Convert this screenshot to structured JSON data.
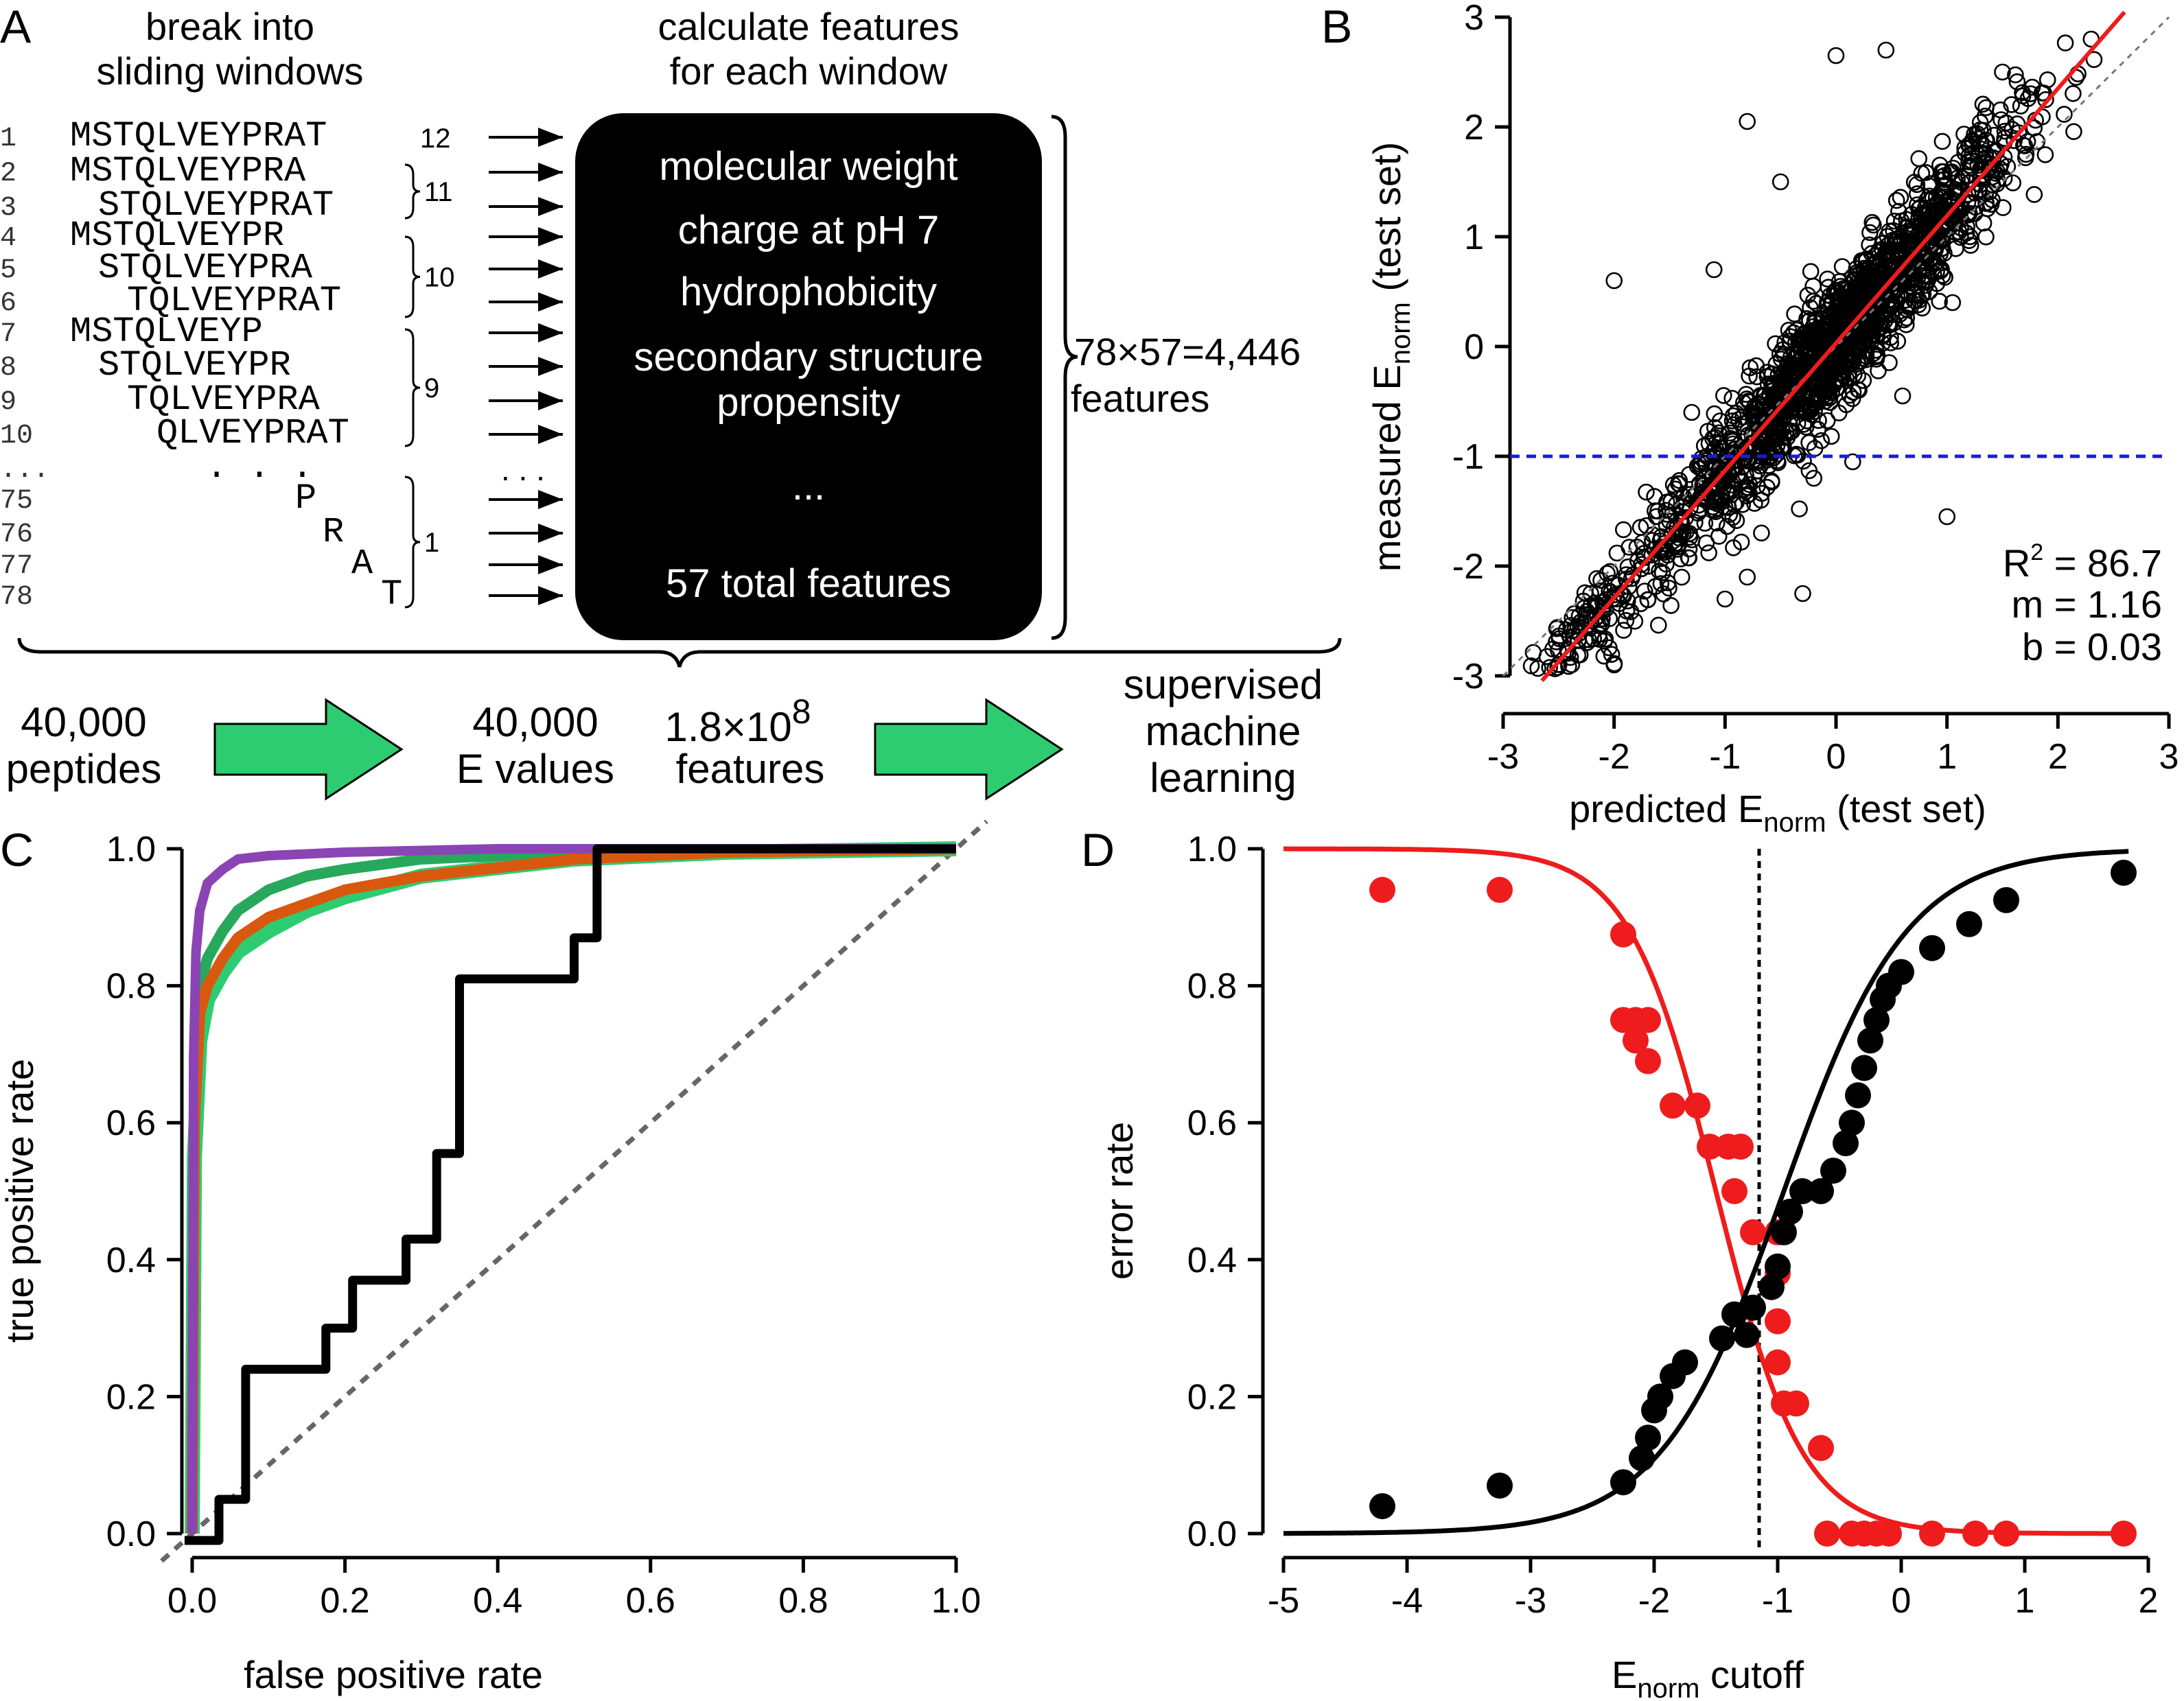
{
  "colors": {
    "red": "#ee1c1c",
    "blue": "#1a1adf",
    "green": "#2ecc71",
    "green_dark": "#27a85c",
    "orange": "#d9580f",
    "purple": "#8b44b4",
    "grey": "#666666",
    "black": "#000000"
  },
  "panel_a": {
    "letter": "A",
    "col1_header": [
      "break into",
      "sliding windows"
    ],
    "col2_header": [
      "calculate features",
      "for each window"
    ],
    "windows": [
      {
        "idx": "1",
        "seq": "MSTQLVEYPRAT"
      },
      {
        "idx": "2",
        "seq": "MSTQLVEYPRA"
      },
      {
        "idx": "3",
        "seq": "STQLVEYPRAT"
      },
      {
        "idx": "4",
        "seq": "MSTQLVEYPR"
      },
      {
        "idx": "5",
        "seq": "STQLVEYPRA"
      },
      {
        "idx": "6",
        "seq": "TQLVEYPRAT"
      },
      {
        "idx": "7",
        "seq": "MSTQLVEYP"
      },
      {
        "idx": "8",
        "seq": "STQLVEYPR"
      },
      {
        "idx": "9",
        "seq": "TQLVEYPRA"
      },
      {
        "idx": "10",
        "seq": "QLVEYPRAT"
      },
      {
        "idx": "...",
        "seq": ". . ."
      },
      {
        "idx": "75",
        "seq": "P"
      },
      {
        "idx": "76",
        "seq": "R"
      },
      {
        "idx": "77",
        "seq": "A"
      },
      {
        "idx": "78",
        "seq": "T"
      }
    ],
    "group_counts": [
      "12",
      "11",
      "10",
      "9",
      "1"
    ],
    "box_features": [
      "molecular weight",
      "charge at pH 7",
      "hydrophobicity",
      "secondary structure",
      "propensity",
      "...",
      "57 total features"
    ],
    "total_features": [
      "78×57=4,446",
      "features"
    ],
    "flow": {
      "peptides": [
        "40,000",
        "peptides"
      ],
      "evalues": [
        "40,000",
        "E values"
      ],
      "features_prefix": "1.8×10",
      "features_exp": "8",
      "features_word": "features",
      "ml": [
        "supervised",
        "machine",
        "learning"
      ]
    }
  },
  "panel_b": {
    "letter": "B",
    "stats": {
      "r2_label": "R",
      "r2_sup": "2",
      "r2_value": " = 86.7",
      "m": "m = 1.16",
      "b": "b = 0.03"
    },
    "xlabel": {
      "pre": "predicted E",
      "sub": "norm",
      "post": " (test set)"
    },
    "ylabel": {
      "pre": "measured E",
      "sub": "norm",
      "post": " (test set)"
    },
    "chart_data": {
      "type": "scatter",
      "x_range": [
        -3,
        3
      ],
      "y_range": [
        -3,
        3
      ],
      "xticks": [
        "-3",
        "-2",
        "-1",
        "0",
        "1",
        "2",
        "3"
      ],
      "yticks": [
        "-3",
        "-2",
        "-1",
        "0",
        "1",
        "2",
        "3"
      ],
      "fit_line": {
        "slope": 1.16,
        "intercept": 0.03
      },
      "identity_line": true,
      "threshold_y": -1,
      "outliers": [
        [
          -2.0,
          0.6
        ],
        [
          -0.8,
          2.05
        ],
        [
          -1.1,
          0.7
        ],
        [
          -1.3,
          -0.6
        ],
        [
          -0.8,
          -2.1
        ],
        [
          -0.3,
          -2.25
        ],
        [
          -0.2,
          -1.2
        ],
        [
          1.0,
          -1.55
        ],
        [
          0.6,
          -0.45
        ],
        [
          1.05,
          0.4
        ],
        [
          1.5,
          2.5
        ],
        [
          2.3,
          2.8
        ],
        [
          0.0,
          2.65
        ],
        [
          0.45,
          2.7
        ],
        [
          -0.5,
          1.5
        ],
        [
          -1.0,
          -2.3
        ],
        [
          -2.0,
          -2.9
        ],
        [
          0.15,
          -1.05
        ]
      ]
    }
  },
  "panel_c": {
    "letter": "C",
    "xlabel": "false positive rate",
    "ylabel": "true positive rate",
    "chart_data": {
      "type": "line",
      "x_range": [
        0,
        1
      ],
      "y_range": [
        0,
        1
      ],
      "xticks": [
        "0.0",
        "0.2",
        "0.4",
        "0.6",
        "0.8",
        "1.0"
      ],
      "yticks": [
        "0.0",
        "0.2",
        "0.4",
        "0.6",
        "0.8",
        "1.0"
      ],
      "series": [
        {
          "color": "#2ecc71",
          "x": [
            0,
            0.003,
            0.01,
            0.02,
            0.04,
            0.06,
            0.1,
            0.15,
            0.2,
            0.3,
            0.5,
            0.7,
            1.0
          ],
          "y": [
            0,
            0.55,
            0.72,
            0.78,
            0.82,
            0.85,
            0.88,
            0.91,
            0.93,
            0.96,
            0.985,
            0.995,
            1.0
          ]
        },
        {
          "color": "#27a85c",
          "x": [
            0,
            0.003,
            0.01,
            0.02,
            0.04,
            0.06,
            0.1,
            0.15,
            0.2,
            0.3,
            0.5,
            0.7,
            1.0
          ],
          "y": [
            0,
            0.7,
            0.8,
            0.84,
            0.88,
            0.91,
            0.94,
            0.96,
            0.97,
            0.985,
            0.995,
            0.998,
            1.0
          ]
        },
        {
          "color": "#d9580f",
          "x": [
            0,
            0.003,
            0.01,
            0.02,
            0.04,
            0.06,
            0.1,
            0.15,
            0.2,
            0.3,
            0.5,
            0.7,
            1.0
          ],
          "y": [
            0,
            0.6,
            0.76,
            0.8,
            0.84,
            0.87,
            0.9,
            0.92,
            0.94,
            0.96,
            0.985,
            0.995,
            1.0
          ]
        },
        {
          "color": "#8b44b4",
          "x": [
            0,
            0.002,
            0.005,
            0.01,
            0.02,
            0.04,
            0.06,
            0.1,
            0.2,
            0.4,
            1.0
          ],
          "y": [
            0,
            0.7,
            0.85,
            0.91,
            0.95,
            0.97,
            0.985,
            0.99,
            0.995,
            1.0,
            1.0
          ]
        },
        {
          "color": "#000000",
          "step": true,
          "x": [
            -0.01,
            0.035,
            0.035,
            0.07,
            0.07,
            0.175,
            0.175,
            0.21,
            0.21,
            0.28,
            0.28,
            0.32,
            0.32,
            0.35,
            0.35,
            0.5,
            0.5,
            0.53,
            0.53,
            1.0
          ],
          "y": [
            -0.01,
            -0.01,
            0.05,
            0.05,
            0.24,
            0.24,
            0.3,
            0.3,
            0.37,
            0.37,
            0.43,
            0.43,
            0.555,
            0.555,
            0.81,
            0.81,
            0.87,
            0.87,
            1.0,
            1.0
          ]
        }
      ],
      "diagonal": true
    }
  },
  "panel_d": {
    "letter": "D",
    "xlabel": {
      "pre": "E",
      "sub": "norm",
      "post": " cutoff"
    },
    "ylabel": "error rate",
    "chart_data": {
      "type": "scatter",
      "x_range": [
        -5,
        2
      ],
      "y_range": [
        0,
        1
      ],
      "xticks": [
        "-5",
        "-4",
        "-3",
        "-2",
        "-1",
        "0",
        "1",
        "2"
      ],
      "yticks": [
        "0.0",
        "0.2",
        "0.4",
        "0.6",
        "0.8",
        "1.0"
      ],
      "cutoff_x": -1.15,
      "series": [
        {
          "name": "",
          "color": "#ee1c1c",
          "curve": {
            "type": "decreasing_sigmoid",
            "center": -1.5,
            "scale": 0.35
          },
          "points": [
            [
              -4.2,
              0.94
            ],
            [
              -3.25,
              0.94
            ],
            [
              -2.25,
              0.875
            ],
            [
              -2.25,
              0.75
            ],
            [
              -2.15,
              0.75
            ],
            [
              -2.05,
              0.75
            ],
            [
              -2.15,
              0.72
            ],
            [
              -2.05,
              0.69
            ],
            [
              -1.85,
              0.625
            ],
            [
              -1.65,
              0.625
            ],
            [
              -1.55,
              0.565
            ],
            [
              -1.4,
              0.565
            ],
            [
              -1.3,
              0.565
            ],
            [
              -1.35,
              0.5
            ],
            [
              -1.2,
              0.44
            ],
            [
              -1.0,
              0.44
            ],
            [
              -1.0,
              0.38
            ],
            [
              -1.0,
              0.31
            ],
            [
              -1.0,
              0.25
            ],
            [
              -0.95,
              0.19
            ],
            [
              -0.85,
              0.19
            ],
            [
              -0.65,
              0.125
            ],
            [
              -0.6,
              0.0
            ],
            [
              -0.4,
              0.0
            ],
            [
              -0.3,
              0.0
            ],
            [
              -0.2,
              0.0
            ],
            [
              -0.1,
              0.0
            ],
            [
              0.25,
              0.0
            ],
            [
              0.6,
              0.0
            ],
            [
              0.85,
              0.0
            ],
            [
              1.8,
              0.0
            ]
          ]
        },
        {
          "name": "",
          "color": "#000000",
          "curve": {
            "type": "increasing_sigmoid",
            "center": -0.95,
            "scale": 0.5,
            "max": 1.0
          },
          "points": [
            [
              -4.2,
              0.04
            ],
            [
              -3.25,
              0.07
            ],
            [
              -2.25,
              0.075
            ],
            [
              -2.1,
              0.11
            ],
            [
              -2.05,
              0.14
            ],
            [
              -2.0,
              0.18
            ],
            [
              -1.95,
              0.2
            ],
            [
              -1.85,
              0.23
            ],
            [
              -1.75,
              0.25
            ],
            [
              -1.45,
              0.285
            ],
            [
              -1.25,
              0.29
            ],
            [
              -1.35,
              0.32
            ],
            [
              -1.2,
              0.33
            ],
            [
              -1.05,
              0.36
            ],
            [
              -1.0,
              0.39
            ],
            [
              -0.95,
              0.44
            ],
            [
              -0.9,
              0.47
            ],
            [
              -0.8,
              0.5
            ],
            [
              -0.65,
              0.5
            ],
            [
              -0.55,
              0.53
            ],
            [
              -0.45,
              0.57
            ],
            [
              -0.4,
              0.6
            ],
            [
              -0.35,
              0.64
            ],
            [
              -0.3,
              0.68
            ],
            [
              -0.25,
              0.72
            ],
            [
              -0.2,
              0.75
            ],
            [
              -0.15,
              0.78
            ],
            [
              -0.1,
              0.8
            ],
            [
              0.0,
              0.82
            ],
            [
              0.25,
              0.855
            ],
            [
              0.55,
              0.89
            ],
            [
              0.85,
              0.925
            ],
            [
              1.8,
              0.965
            ]
          ]
        }
      ]
    }
  }
}
